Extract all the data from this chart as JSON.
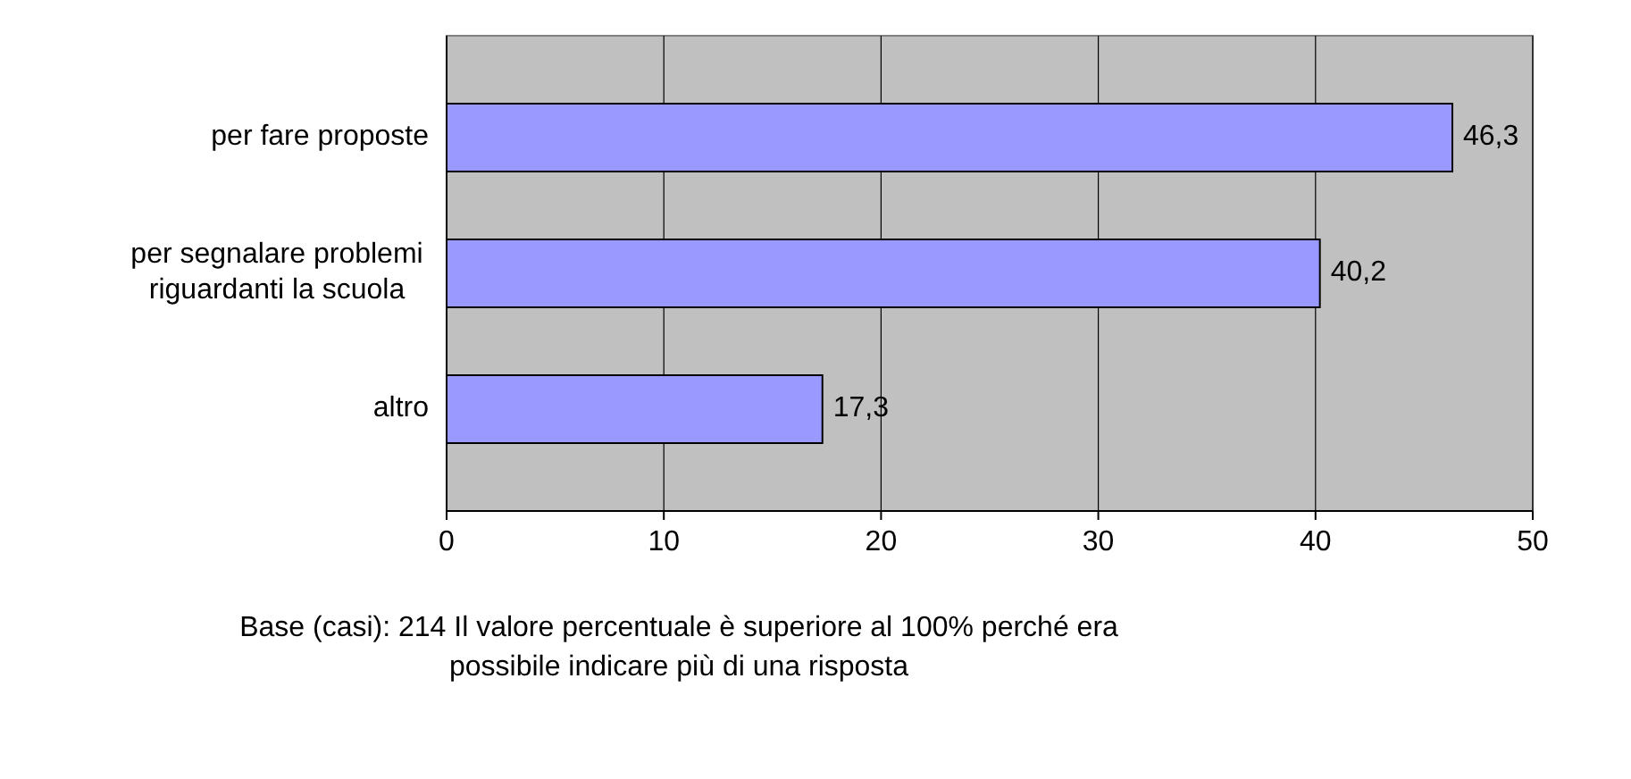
{
  "chart_data": {
    "type": "bar",
    "orientation": "horizontal",
    "categories": [
      "per fare proposte",
      "per segnalare problemi riguardanti la scuola",
      "altro"
    ],
    "values": [
      46.3,
      40.2,
      17.3
    ],
    "value_labels": [
      "46,3",
      "40,2",
      "17,3"
    ],
    "color": "#9999ff",
    "xlim": [
      0,
      50
    ],
    "xticks": [
      0,
      10,
      20,
      30,
      40,
      50
    ],
    "grid": "x",
    "annotations": [
      "Base (casi): 214 Il valore percentuale è superiore al 100% perché era possibile indicare più di una risposta"
    ]
  }
}
